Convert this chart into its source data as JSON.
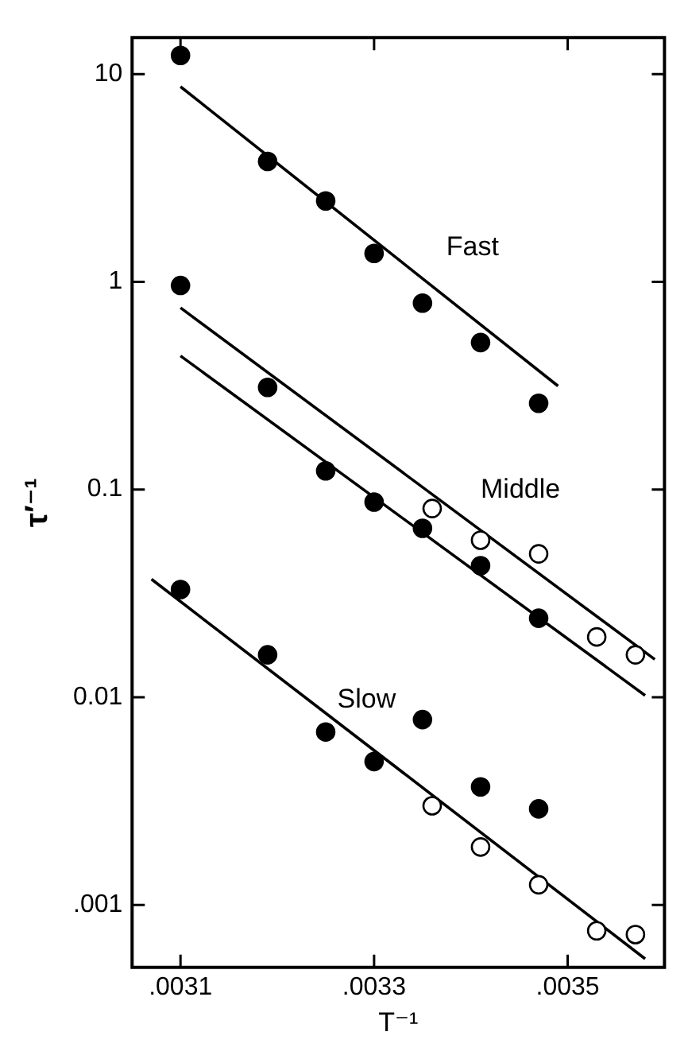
{
  "chart_data": {
    "type": "scatter",
    "xlabel": "T⁻¹",
    "ylabel": "τ′⁻¹",
    "log": "y",
    "grid": false,
    "legend": false,
    "marker": "circle",
    "xlim": [
      0.00305,
      0.0036
    ],
    "xticks": [
      {
        "value": 0.0031,
        "label": ".0031"
      },
      {
        "value": 0.0033,
        "label": ".0033"
      },
      {
        "value": 0.0035,
        "label": ".0035"
      }
    ],
    "ylim": [
      0.0005,
      15
    ],
    "yticks": [
      {
        "value": 0.001,
        "label": ".001"
      },
      0.01,
      0.1,
      1,
      10
    ],
    "series": [
      {
        "color": "#000000",
        "x": [
          0.0031,
          0.00319,
          0.00325,
          0.0033,
          0.00335,
          0.00341,
          0.00347
        ],
        "values": [
          12.3,
          3.8,
          2.45,
          1.37,
          0.79,
          0.51,
          0.26
        ]
      },
      {
        "color": "#000000",
        "x": [
          0.0031,
          0.00319,
          0.00325,
          0.0033,
          0.00335,
          0.00341,
          0.00347
        ],
        "values": [
          0.96,
          0.31,
          0.123,
          0.087,
          0.065,
          0.043,
          0.024
        ]
      },
      {
        "color": "#ffffff",
        "x": [
          0.00336,
          0.00341,
          0.00347,
          0.00353,
          0.00357
        ],
        "values": [
          0.081,
          0.057,
          0.049,
          0.0195,
          0.016
        ]
      },
      {
        "color": "#000000",
        "x": [
          0.0031,
          0.00319,
          0.00325,
          0.0033,
          0.00335,
          0.00341,
          0.00347
        ],
        "values": [
          0.033,
          0.016,
          0.0068,
          0.0049,
          0.0078,
          0.0037,
          0.0029
        ]
      },
      {
        "color": "#ffffff",
        "x": [
          0.00336,
          0.00341,
          0.00347,
          0.00353,
          0.00357
        ],
        "values": [
          0.003,
          0.0019,
          0.00125,
          0.00075,
          0.00072
        ]
      },
      {
        "type": "line",
        "name": "Fast",
        "color": "#000000",
        "marker": "none",
        "x": [
          0.0031,
          0.00349
        ],
        "values": [
          8.7,
          0.315
        ]
      },
      {
        "type": "line",
        "name": "Middle",
        "color": "#000000",
        "marker": "none",
        "x": [
          0.0031,
          0.00359
        ],
        "values": [
          0.75,
          0.0152
        ]
      },
      {
        "type": "line",
        "color": "#000000",
        "marker": "none",
        "x": [
          0.0031,
          0.00358
        ],
        "values": [
          0.44,
          0.0102
        ]
      },
      {
        "type": "line",
        "name": "Slow",
        "color": "#000000",
        "marker": "none",
        "x": [
          0.00307,
          0.00358
        ],
        "values": [
          0.037,
          0.00055
        ]
      }
    ]
  }
}
